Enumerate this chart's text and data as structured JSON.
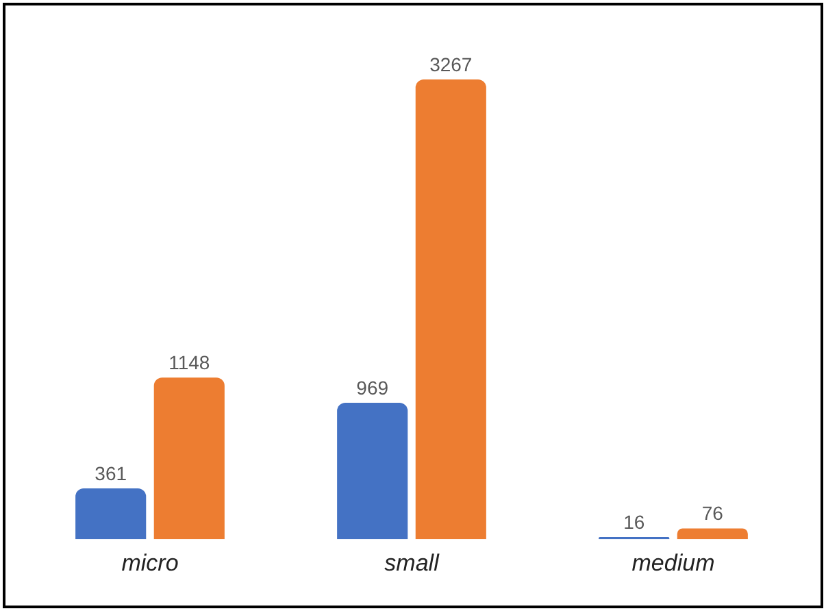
{
  "chart_data": {
    "type": "bar",
    "categories": [
      "micro",
      "small",
      "medium"
    ],
    "series": [
      {
        "color": "#4472c4",
        "values": [
          361,
          969,
          16
        ]
      },
      {
        "color": "#ed7d31",
        "values": [
          1148,
          3267,
          76
        ]
      }
    ],
    "data_labels": true
  }
}
